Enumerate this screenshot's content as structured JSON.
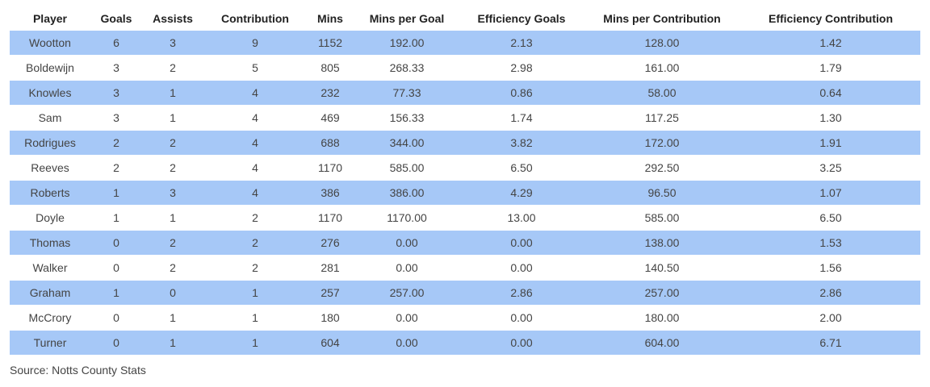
{
  "chart_data": {
    "type": "table",
    "columns": [
      "Player",
      "Goals",
      "Assists",
      "Contribution",
      "Mins",
      "Mins per Goal",
      "Efficiency Goals",
      "Mins per Contribution",
      "Efficiency Contribution"
    ],
    "rows": [
      [
        "Wootton",
        "6",
        "3",
        "9",
        "1152",
        "192.00",
        "2.13",
        "128.00",
        "1.42"
      ],
      [
        "Boldewijn",
        "3",
        "2",
        "5",
        "805",
        "268.33",
        "2.98",
        "161.00",
        "1.79"
      ],
      [
        "Knowles",
        "3",
        "1",
        "4",
        "232",
        "77.33",
        "0.86",
        "58.00",
        "0.64"
      ],
      [
        "Sam",
        "3",
        "1",
        "4",
        "469",
        "156.33",
        "1.74",
        "117.25",
        "1.30"
      ],
      [
        "Rodrigues",
        "2",
        "2",
        "4",
        "688",
        "344.00",
        "3.82",
        "172.00",
        "1.91"
      ],
      [
        "Reeves",
        "2",
        "2",
        "4",
        "1170",
        "585.00",
        "6.50",
        "292.50",
        "3.25"
      ],
      [
        "Roberts",
        "1",
        "3",
        "4",
        "386",
        "386.00",
        "4.29",
        "96.50",
        "1.07"
      ],
      [
        "Doyle",
        "1",
        "1",
        "2",
        "1170",
        "1170.00",
        "13.00",
        "585.00",
        "6.50"
      ],
      [
        "Thomas",
        "0",
        "2",
        "2",
        "276",
        "0.00",
        "0.00",
        "138.00",
        "1.53"
      ],
      [
        "Walker",
        "0",
        "2",
        "2",
        "281",
        "0.00",
        "0.00",
        "140.50",
        "1.56"
      ],
      [
        "Graham",
        "1",
        "0",
        "1",
        "257",
        "257.00",
        "2.86",
        "257.00",
        "2.86"
      ],
      [
        "McCrory",
        "0",
        "1",
        "1",
        "180",
        "0.00",
        "0.00",
        "180.00",
        "2.00"
      ],
      [
        "Turner",
        "0",
        "1",
        "1",
        "604",
        "0.00",
        "0.00",
        "604.00",
        "6.71"
      ]
    ],
    "stripe_color": "#a6c8f7"
  },
  "source": "Source: Notts County Stats"
}
